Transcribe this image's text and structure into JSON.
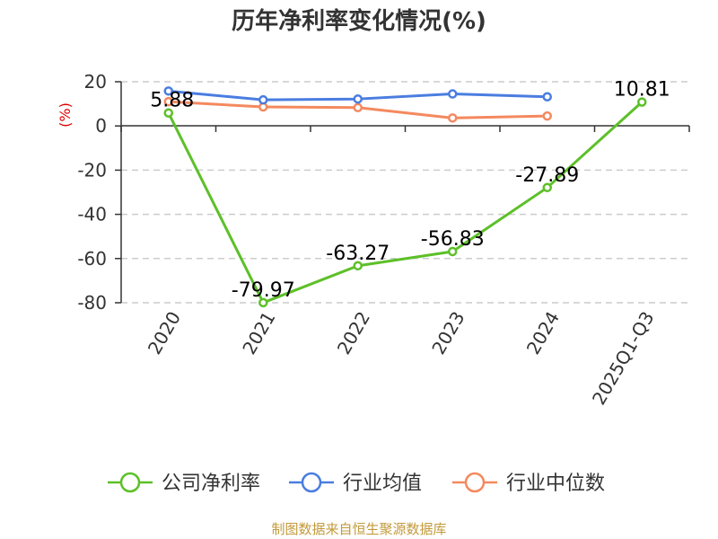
{
  "chart_data": {
    "type": "line",
    "title": "历年净利率变化情况(%)",
    "ylabel": "(%)",
    "xlabel": "",
    "categories": [
      "2020",
      "2021",
      "2022",
      "2023",
      "2024",
      "2025Q1-Q3"
    ],
    "ylim": [
      -80,
      20
    ],
    "yticks": [
      20,
      0,
      -20,
      -40,
      -60,
      -80
    ],
    "grid": true,
    "legend_position": "bottom",
    "series": [
      {
        "name": "公司净利率",
        "color": "#5cc028",
        "values": [
          5.88,
          -79.97,
          -63.27,
          -56.83,
          -27.89,
          10.81
        ],
        "labels": [
          "5.88",
          "-79.97",
          "-63.27",
          "-56.83",
          "-27.89",
          "10.81"
        ]
      },
      {
        "name": "行业均值",
        "color": "#4a7de0",
        "values": [
          15.8,
          11.8,
          12.2,
          14.5,
          13.2,
          null
        ]
      },
      {
        "name": "行业中位数",
        "color": "#f4895f",
        "values": [
          11.0,
          8.6,
          8.3,
          3.6,
          4.5,
          null
        ]
      }
    ],
    "source": "制图数据来自恒生聚源数据库"
  }
}
